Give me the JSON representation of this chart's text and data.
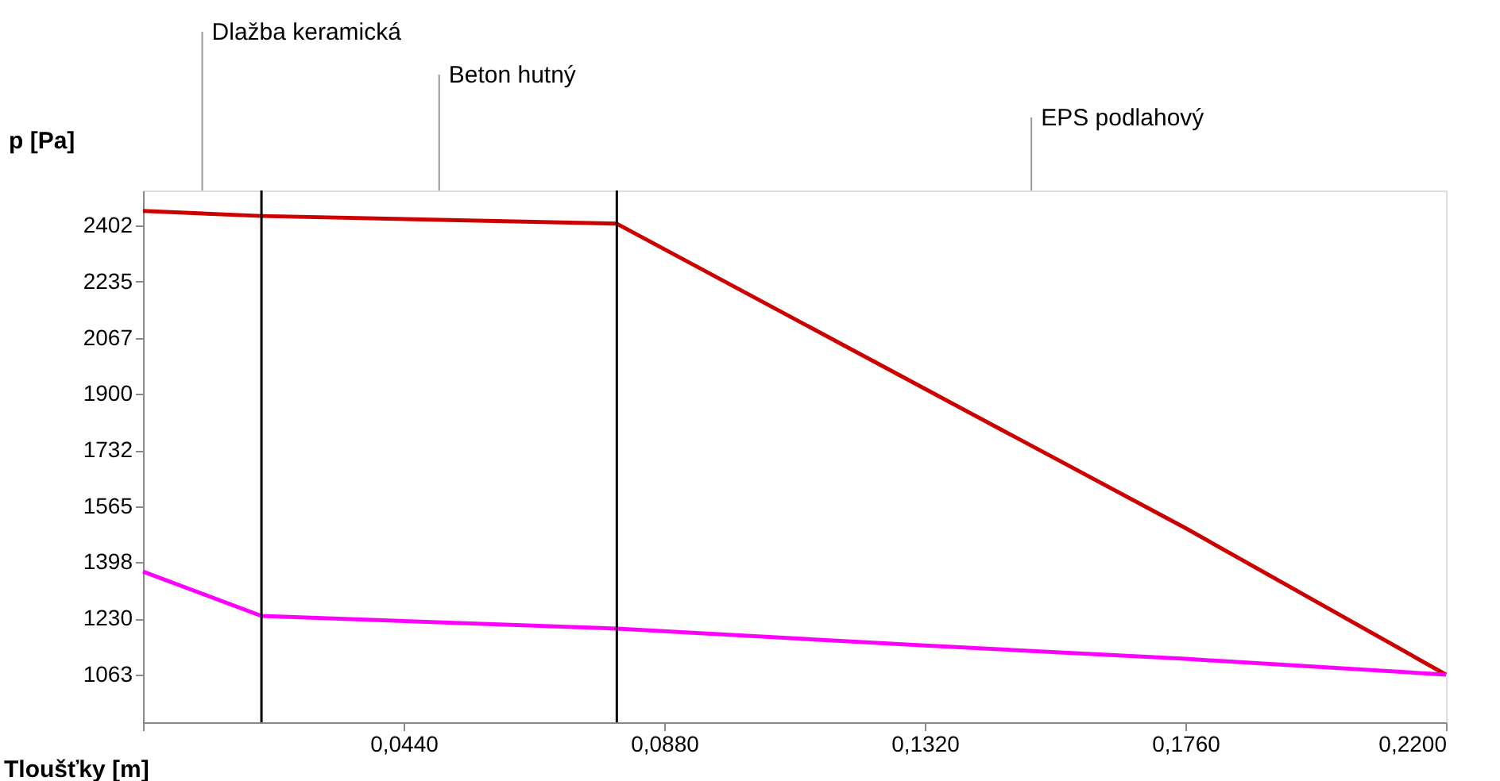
{
  "chart_data": {
    "type": "line",
    "xlabel": "Tloušťky [m]",
    "ylabel": "p [Pa]",
    "annotations": [
      "Dlažba keramická",
      "Beton hutný",
      "EPS podlahový"
    ],
    "series": [
      {
        "color": "#cc0000",
        "x": [
          0,
          0.02,
          0.08,
          0.132,
          0.176,
          0.22
        ],
        "values": [
          2445,
          2430,
          2407,
          1915,
          1500,
          1063
        ]
      },
      {
        "color": "#ff00ff",
        "x": [
          0,
          0.02,
          0.08,
          0.132,
          0.176,
          0.22
        ],
        "values": [
          1370,
          1238,
          1200,
          1150,
          1110,
          1063
        ]
      }
    ],
    "ref_lines": [
      {
        "axis": "x",
        "value": 0.02,
        "color": "#000000"
      },
      {
        "axis": "x",
        "value": 0.08,
        "color": "#000000"
      }
    ],
    "xlim": [
      0,
      0.22
    ],
    "xticks": [
      {
        "value": 0,
        "label": null
      },
      {
        "value": 0.044,
        "label": "0,0440"
      },
      {
        "value": 0.088,
        "label": "0,0880"
      },
      {
        "value": 0.132,
        "label": "0,1320"
      },
      {
        "value": 0.176,
        "label": "0,1760"
      },
      {
        "value": 0.22,
        "label": "0,2200"
      }
    ],
    "ylim": [
      921,
      2506
    ],
    "yticks": [
      1063,
      1230,
      1398,
      1565,
      1732,
      1900,
      2067,
      2235,
      2402
    ],
    "grid": false,
    "legend": false,
    "marker": "none",
    "line_style": "solid"
  }
}
